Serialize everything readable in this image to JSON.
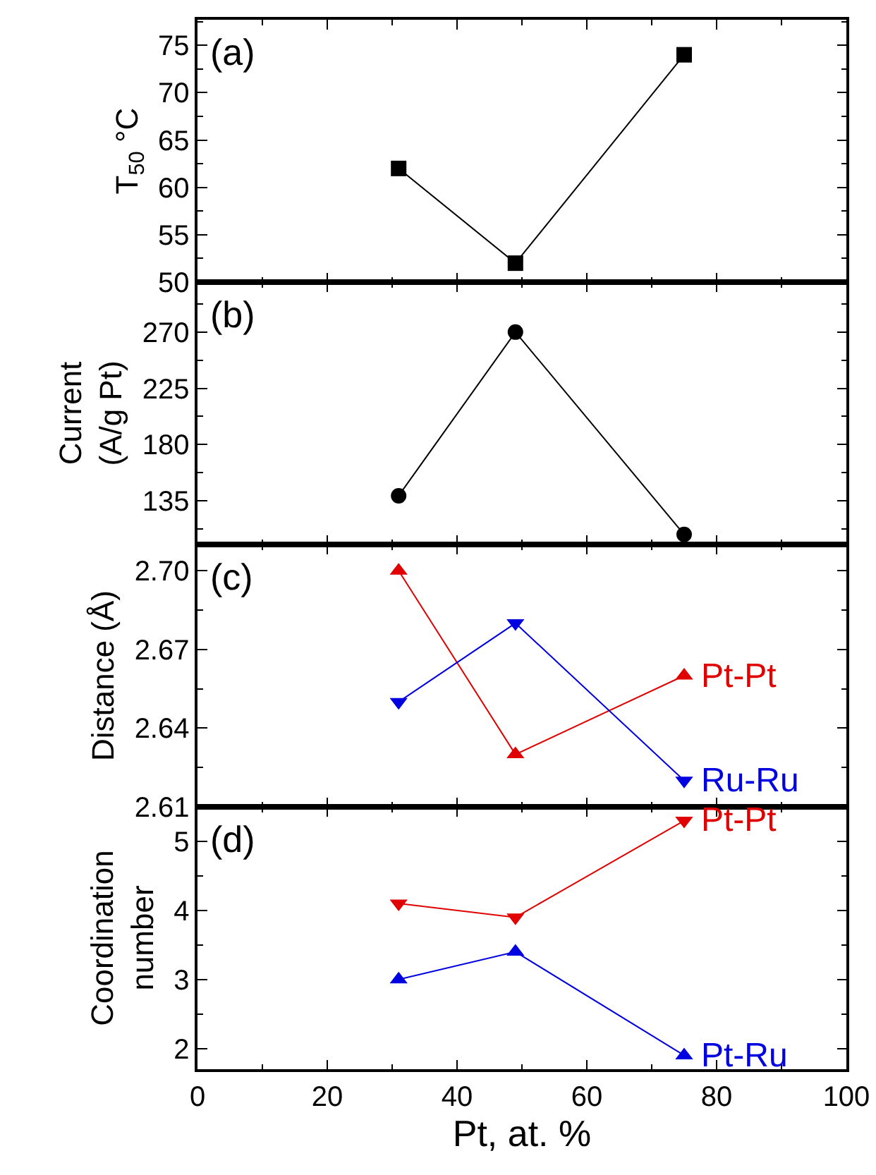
{
  "chart_data": [
    {
      "type": "line",
      "ylabel": "T$_{50}$ °C",
      "annotations": [
        "(a)"
      ],
      "x": [
        31,
        49,
        75
      ],
      "xlim": [
        0,
        100
      ],
      "xticks": [
        0,
        20,
        40,
        60,
        80,
        100
      ],
      "ylim": [
        50,
        77.7
      ],
      "yticks": [
        50,
        55,
        60,
        65,
        70,
        75
      ],
      "tick_labels": "y",
      "series": [
        {
          "color": "#000000",
          "marker": "square",
          "values": [
            62,
            52,
            74
          ]
        }
      ]
    },
    {
      "type": "line",
      "ylabel": "Current\n(A/g Pt)",
      "annotations": [
        "(b)"
      ],
      "x": [
        31,
        49,
        75
      ],
      "xlim": [
        0,
        100
      ],
      "xticks": [
        0,
        20,
        40,
        60,
        80,
        100
      ],
      "ylim": [
        100,
        310
      ],
      "yticks": [
        135,
        180,
        225,
        270
      ],
      "tick_labels": "y",
      "series": [
        {
          "color": "#000000",
          "marker": "circle",
          "values": [
            139,
            270,
            108
          ]
        }
      ]
    },
    {
      "type": "line",
      "ylabel": "Distance (Å)",
      "annotations": [
        "(c)"
      ],
      "x": [
        31,
        49,
        75
      ],
      "xlim": [
        0,
        100
      ],
      "xticks": [
        0,
        20,
        40,
        60,
        80,
        100
      ],
      "ylim": [
        2.61,
        2.71
      ],
      "yticks": [
        2.61,
        2.64,
        2.67,
        {
          "value": 2.7,
          "label": "2.70"
        }
      ],
      "tick_labels": "y",
      "series": [
        {
          "name": "Pt-Pt",
          "color": "#e00000",
          "marker": "triangle",
          "values": [
            2.7,
            2.63,
            2.66
          ]
        },
        {
          "name": "Ru-Ru",
          "color": "#0000e0",
          "marker": "triangle-down",
          "values": [
            2.65,
            2.68,
            2.62
          ]
        }
      ]
    },
    {
      "type": "line",
      "ylabel": "Coordination\nnumber",
      "xlabel": "Pt, at. %",
      "annotations": [
        "(d)"
      ],
      "x": [
        31,
        49,
        75
      ],
      "xlim": [
        0,
        100
      ],
      "xticks": [
        0,
        20,
        40,
        60,
        80,
        100
      ],
      "ylim": [
        1.7,
        5.5
      ],
      "yticks": [
        2,
        3,
        4,
        5
      ],
      "series": [
        {
          "name": "Pt-Pt",
          "color": "#e00000",
          "marker": "triangle-down",
          "values": [
            4.1,
            3.9,
            5.3
          ]
        },
        {
          "name": "Pt-Ru",
          "color": "#0000e0",
          "marker": "triangle",
          "values": [
            3.0,
            3.4,
            1.9
          ]
        }
      ]
    }
  ]
}
